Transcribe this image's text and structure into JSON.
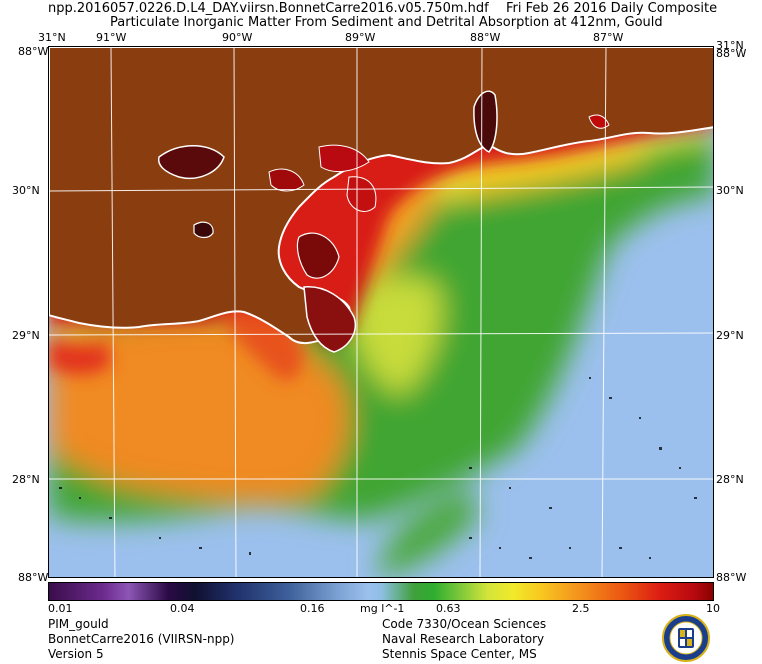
{
  "header": {
    "filename": "npp.2016057.0226.D.L4_DAY.viirsn.BonnetCarre2016.v05.750m.hdf",
    "date": "Fri Feb 26 2016 Daily Composite",
    "product_title": "Particulate Inorganic Matter From Sediment and Detrital Absorption at 412nm, Gould"
  },
  "axes": {
    "top_lon": [
      "91°W",
      "90°W",
      "89°W",
      "88°W",
      "87°W"
    ],
    "lat_left": [
      "31°N",
      "30°N",
      "29°N",
      "28°N"
    ],
    "lat_right": [
      "31°N",
      "30°N",
      "29°N",
      "28°N"
    ],
    "corner_labels": {
      "top_left": "88°W",
      "top_right": "88°W",
      "bottom_left": "88°W",
      "bottom_right": "88°W"
    }
  },
  "colorbar": {
    "ticks": [
      "0.01",
      "0.04",
      "0.16",
      "0.63",
      "2.5",
      "10"
    ],
    "unit": "mg l^-1",
    "scale": "log"
  },
  "footer": {
    "left": [
      "PIM_gould",
      "BonnetCarre2016 (VIIRSN-npp)",
      "Version 5"
    ],
    "right": [
      "Code 7330/Ocean Sciences",
      "Naval Research Laboratory",
      "Stennis Space Center, MS"
    ]
  },
  "colors": {
    "land": "#8a3d0e",
    "coast": "#ffffff",
    "grid": "#ffffff",
    "offshore": "#9cc0ee",
    "shelf_green": "#3fa532",
    "plume_orange": "#f08a22",
    "nearshore_red": "#d81a12"
  }
}
